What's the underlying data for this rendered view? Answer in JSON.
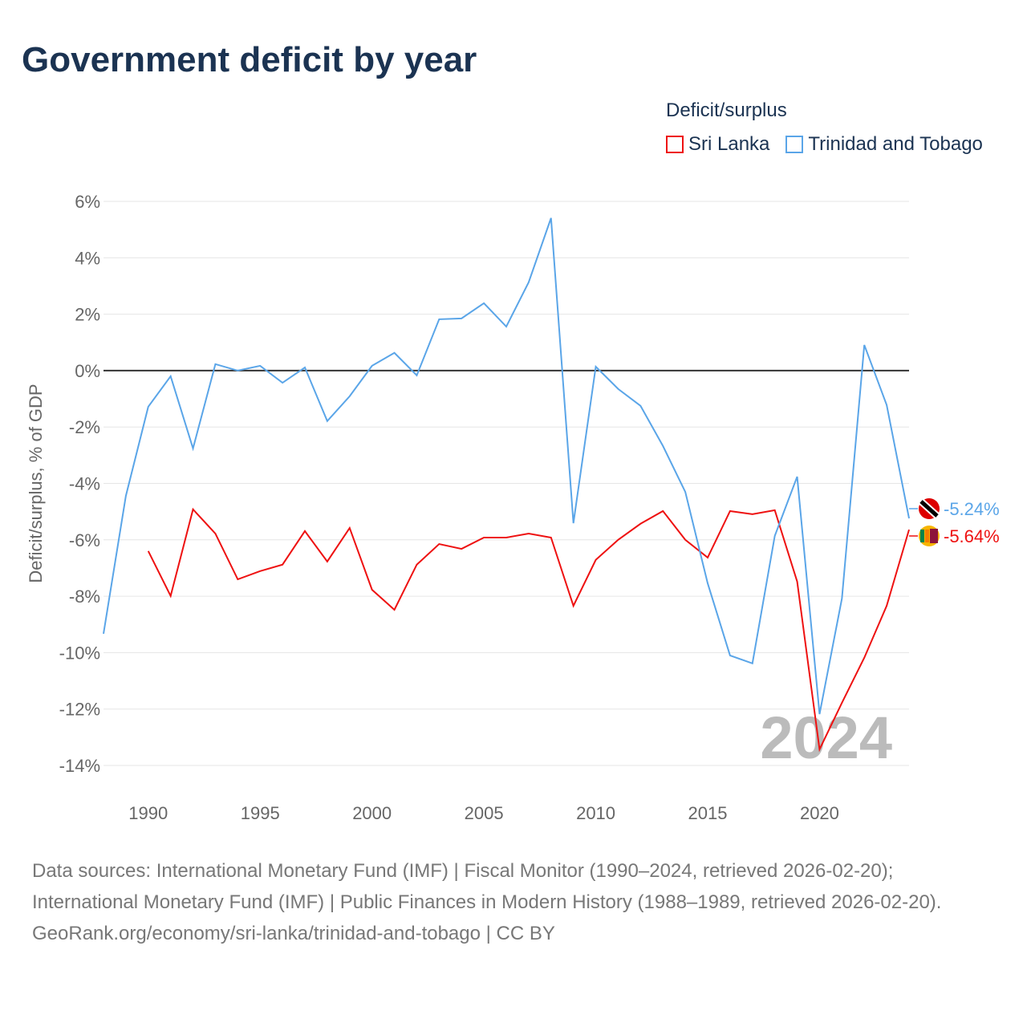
{
  "title": "Government deficit by year",
  "legend": {
    "title": "Deficit/surplus"
  },
  "chart_data": {
    "type": "line",
    "ylabel": "Deficit/surplus, % of GDP",
    "ylim": [
      -14,
      6
    ],
    "xlim": [
      1988,
      2024
    ],
    "yticks": [
      "6%",
      "4%",
      "2%",
      "0%",
      "-2%",
      "-4%",
      "-6%",
      "-8%",
      "-10%",
      "-12%",
      "-14%"
    ],
    "ytick_values": [
      6,
      4,
      2,
      0,
      -2,
      -4,
      -6,
      -8,
      -10,
      -12,
      -14
    ],
    "xticks": [
      "1990",
      "1995",
      "2000",
      "2005",
      "2010",
      "2015",
      "2020"
    ],
    "xtick_values": [
      1990,
      1995,
      2000,
      2005,
      2010,
      2015,
      2020
    ],
    "year_watermark": "2024",
    "series": [
      {
        "name": "Sri Lanka",
        "color": "#ee1111",
        "end_label": "-5.64%",
        "start_year": 1990,
        "values": [
          -6.4,
          -7.99,
          -4.92,
          -5.78,
          -7.4,
          -7.11,
          -6.88,
          -5.69,
          -6.77,
          -5.58,
          -7.77,
          -8.48,
          -6.88,
          -6.15,
          -6.32,
          -5.92,
          -5.92,
          -5.78,
          -5.92,
          -8.34,
          -6.71,
          -6.0,
          -5.43,
          -4.98,
          -6.0,
          -6.63,
          -4.98,
          -5.09,
          -4.95,
          -7.48,
          -13.43,
          -11.78,
          -10.18,
          -8.34,
          -5.64
        ]
      },
      {
        "name": "Trinidad and Tobago",
        "color": "#5aa5e8",
        "end_label": "-5.24%",
        "start_year": 1988,
        "values": [
          -9.33,
          -4.44,
          -1.28,
          -0.2,
          -2.76,
          0.23,
          0,
          0.17,
          -0.43,
          0.11,
          -1.79,
          -0.91,
          0.17,
          0.63,
          -0.17,
          1.82,
          1.85,
          2.39,
          1.56,
          3.13,
          5.41,
          -5.41,
          0.14,
          -0.65,
          -1.25,
          -2.67,
          -4.3,
          -7.54,
          -10.1,
          -10.38,
          -5.86,
          -3.76,
          -12.18,
          -8.08,
          0.91,
          -1.22,
          -5.24
        ]
      }
    ]
  },
  "footer": {
    "sources": "Data sources: International Monetary Fund (IMF) | Fiscal Monitor (1990–2024, retrieved 2026-02-20); International Monetary Fund (IMF) | Public Finances in Modern History (1988–1989, retrieved 2026-02-20).",
    "link": "GeoRank.org/economy/sri-lanka/trinidad-and-tobago | CC BY"
  }
}
